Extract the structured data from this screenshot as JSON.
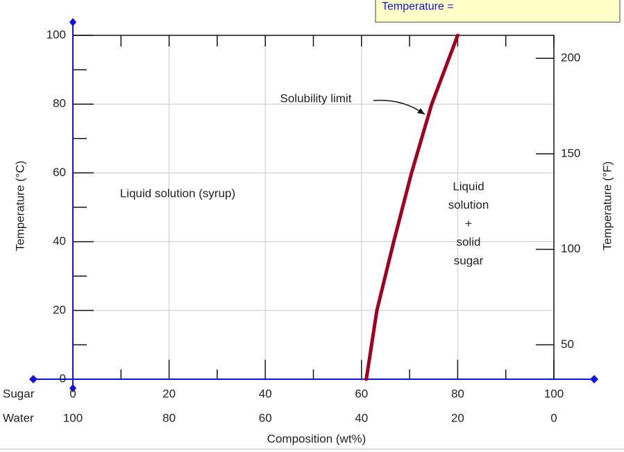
{
  "popup": {
    "label": "Temperature ="
  },
  "chart_data": {
    "type": "line",
    "x": [
      61,
      63.2,
      66.7,
      70.4,
      74.6,
      80
    ],
    "values": [
      0,
      20,
      40,
      60,
      80,
      100
    ],
    "color": "#a0001e",
    "xlim": [
      0,
      100
    ],
    "xticks": [
      0,
      20,
      40,
      60,
      80,
      100
    ],
    "xminor": [
      10,
      30,
      50,
      70,
      90
    ],
    "x2lim": [
      100,
      0
    ],
    "x2ticks": [
      100,
      80,
      60,
      40,
      20,
      0
    ],
    "row_labels": [
      "Sugar",
      "Water"
    ],
    "ylim": [
      0,
      100
    ],
    "yticks": [
      0,
      20,
      40,
      60,
      80,
      100
    ],
    "yminor": [
      10,
      30,
      50,
      70,
      90
    ],
    "y2lim": [
      32,
      212
    ],
    "y2ticks": [
      50,
      100,
      150,
      200
    ],
    "xlabel": "Composition (wt%)",
    "ylabel": "Temperature (°C)",
    "y2label": "Temperature (°F)",
    "grid": true,
    "annotations": [
      {
        "text": "Solubility limit"
      },
      {
        "text": "Liquid solution (syrup)"
      },
      {
        "lines": [
          "Liquid",
          "solution",
          "+",
          "solid",
          "sugar"
        ]
      }
    ]
  }
}
